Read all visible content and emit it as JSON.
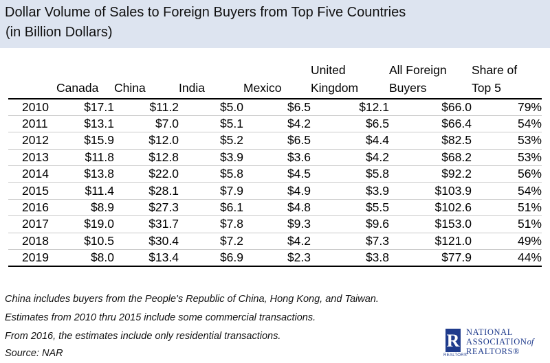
{
  "title": {
    "line1": "Dollar Volume of Sales to Foreign Buyers from Top Five Countries",
    "line2": "(in Billion Dollars)"
  },
  "table": {
    "headers": {
      "canada": [
        "",
        "Canada"
      ],
      "china": [
        "",
        "China"
      ],
      "india": [
        "",
        "India"
      ],
      "mexico": [
        "",
        "Mexico"
      ],
      "uk": [
        "United",
        "Kingdom"
      ],
      "all": [
        "All Foreign",
        "Buyers"
      ],
      "share": [
        "Share of",
        "Top 5"
      ]
    },
    "rows": [
      [
        "2010",
        "$17.1",
        "$11.2",
        "$5.0",
        "$6.5",
        "$12.1",
        "$66.0",
        "79%"
      ],
      [
        "2011",
        "$13.1",
        "$7.0",
        "$5.1",
        "$4.2",
        "$6.5",
        "$66.4",
        "54%"
      ],
      [
        "2012",
        "$15.9",
        "$12.0",
        "$5.2",
        "$6.5",
        "$4.4",
        "$82.5",
        "53%"
      ],
      [
        "2013",
        "$11.8",
        "$12.8",
        "$3.9",
        "$3.6",
        "$4.2",
        "$68.2",
        "53%"
      ],
      [
        "2014",
        "$13.8",
        "$22.0",
        "$5.8",
        "$4.5",
        "$5.8",
        "$92.2",
        "56%"
      ],
      [
        "2015",
        "$11.4",
        "$28.1",
        "$7.9",
        "$4.9",
        "$3.9",
        "$103.9",
        "54%"
      ],
      [
        "2016",
        "$8.9",
        "$27.3",
        "$6.1",
        "$4.8",
        "$5.5",
        "$102.6",
        "51%"
      ],
      [
        "2017",
        "$19.0",
        "$31.7",
        "$7.8",
        "$9.3",
        "$9.6",
        "$153.0",
        "51%"
      ],
      [
        "2018",
        "$10.5",
        "$30.4",
        "$7.2",
        "$4.2",
        "$7.3",
        "$121.0",
        "49%"
      ],
      [
        "2019",
        "$8.0",
        "$13.4",
        "$6.9",
        "$2.3",
        "$3.8",
        "$77.9",
        "44%"
      ]
    ]
  },
  "notes": [
    "China includes buyers from the People's Republic of China, Hong Kong, and Taiwan.",
    "Estimates from 2010 thru 2015 include some commercial transactions.",
    "From 2016, the estimates include only residential transactions.",
    "Source: NAR"
  ],
  "logo": {
    "mark": "R",
    "sub": "REALTOR®",
    "line1": "NATIONAL",
    "line2a": "ASSOCIATION",
    "line2b": "of",
    "line3": "REALTORS®"
  },
  "colors": {
    "title_band": "#dde4f0",
    "logo_blue": "#1f3b8c"
  }
}
